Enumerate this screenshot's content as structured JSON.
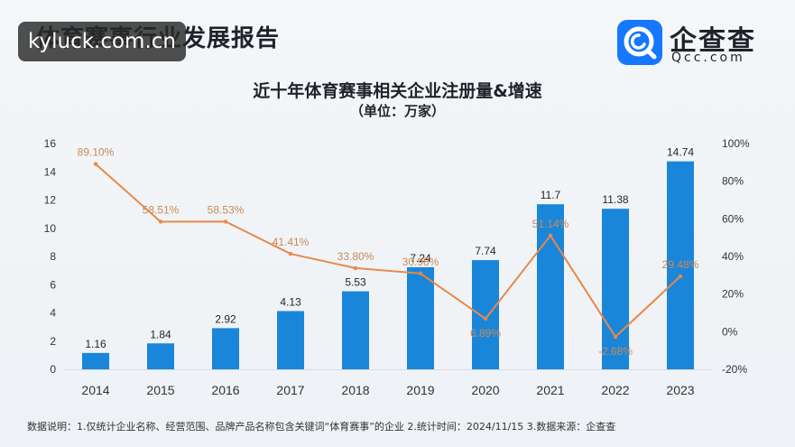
{
  "header": {
    "report_title": "体育赛事行业发展报告",
    "watermark": "kyluck.com.cn",
    "logo_name": "企查查",
    "logo_domain": "Qcc.com"
  },
  "footnote": "数据说明：1.仅统计企业名称、经营范围、品牌产品名称包含关键词“体育赛事”的企业  2.统计时间：2024/11/15  3.数据来源：企查查",
  "colors": {
    "bar": "#1a86d9",
    "line": "#e8884a",
    "rate_label": "#c98a55"
  },
  "chart_data": {
    "type": "bar",
    "title": "近十年体育赛事相关企业注册量&增速",
    "subtitle": "（单位：万家）",
    "categories": [
      "2014",
      "2015",
      "2016",
      "2017",
      "2018",
      "2019",
      "2020",
      "2021",
      "2022",
      "2023"
    ],
    "ylim": [
      0,
      16
    ],
    "y_ticks": [
      "0",
      "2",
      "4",
      "6",
      "8",
      "10",
      "12",
      "14",
      "16"
    ],
    "y2lim": [
      -20,
      100
    ],
    "y2_ticks": [
      "-20%",
      "0%",
      "20%",
      "40%",
      "60%",
      "80%",
      "100%"
    ],
    "grid": false,
    "series": [
      {
        "type": "bar",
        "axis": "left",
        "values": [
          1.16,
          1.84,
          2.92,
          4.13,
          5.53,
          7.24,
          7.74,
          11.7,
          11.38,
          14.74
        ],
        "labels": [
          "1.16",
          "1.84",
          "2.92",
          "4.13",
          "5.53",
          "7.24",
          "7.74",
          "11.7",
          "11.38",
          "14.74"
        ]
      },
      {
        "type": "line",
        "axis": "right",
        "values": [
          89.1,
          58.51,
          58.53,
          41.41,
          33.8,
          30.98,
          6.89,
          51.14,
          -2.68,
          29.48
        ],
        "labels": [
          "89.10%",
          "58.51%",
          "58.53%",
          "41.41%",
          "33.80%",
          "30.98%",
          "6.89%",
          "51.14%",
          "-2.68%",
          "29.48%"
        ]
      }
    ]
  }
}
